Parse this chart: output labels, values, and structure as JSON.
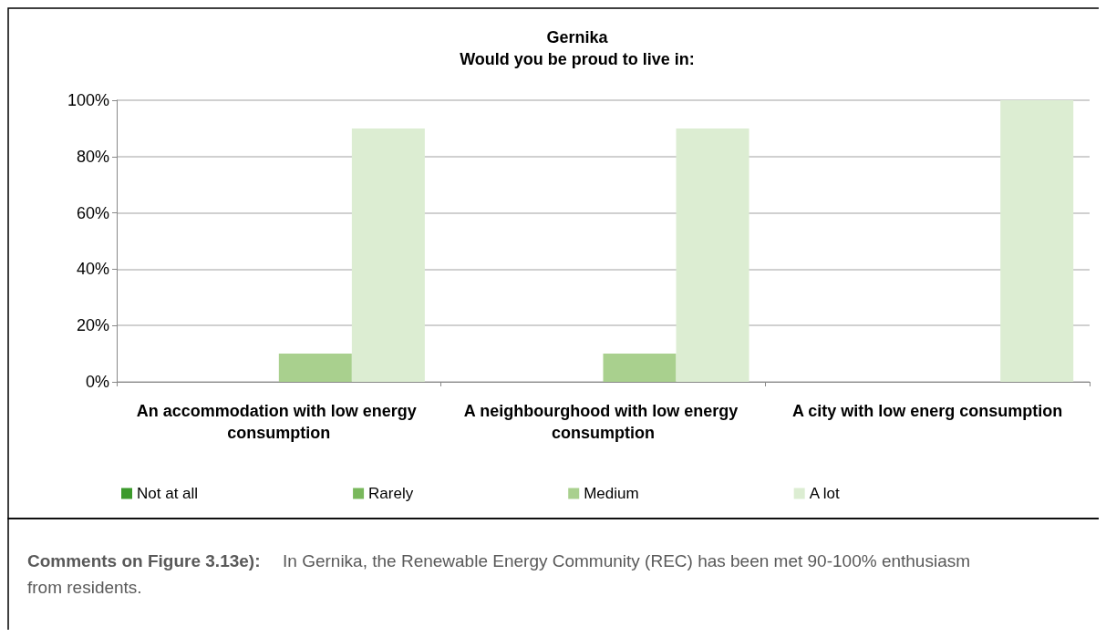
{
  "chart_data": {
    "type": "bar",
    "title": "Gernika\nWould you be proud to live in:",
    "categories": [
      "An accommodation with low energy consumption",
      "A neighbourghood with low energy consumption",
      "A city with low energ consumption"
    ],
    "series": [
      {
        "name": "Not at all",
        "color": "#3c9a2c",
        "values": [
          0,
          0,
          0
        ]
      },
      {
        "name": "Rarely",
        "color": "#79b85c",
        "values": [
          0,
          0,
          0
        ]
      },
      {
        "name": "Medium",
        "color": "#a9d08e",
        "values": [
          10,
          10,
          0
        ]
      },
      {
        "name": "A lot",
        "color": "#dcedd2",
        "values": [
          90,
          90,
          100
        ]
      }
    ],
    "ylim": [
      0,
      100
    ],
    "yticks": [
      {
        "value": 0,
        "label": "0%"
      },
      {
        "value": 20,
        "label": "20%"
      },
      {
        "value": 40,
        "label": "40%"
      },
      {
        "value": 60,
        "label": "60%"
      },
      {
        "value": 80,
        "label": "80%"
      },
      {
        "value": 100,
        "label": "100%"
      }
    ],
    "grid": "y",
    "legend": "bottom",
    "annotations": [
      "Comments on Figure 3.13e): In Gernika, the Renewable Energy Community (REC) has been met 90-100% enthusiasm from residents."
    ]
  }
}
